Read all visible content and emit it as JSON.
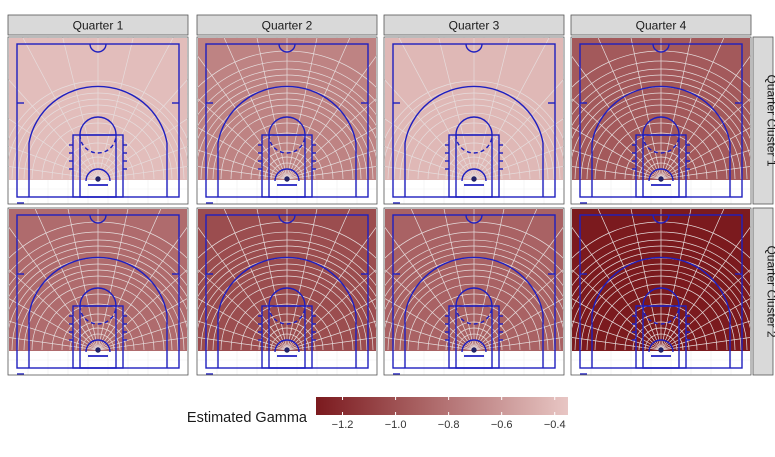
{
  "chart_data": {
    "type": "heatmap",
    "columns": [
      "Quarter 1",
      "Quarter 2",
      "Quarter 3",
      "Quarter 4"
    ],
    "rows": [
      "Quarter Cluster 1",
      "Quarter Cluster 2"
    ],
    "values": [
      [
        -0.4,
        -0.72,
        -0.43,
        -0.95
      ],
      [
        -0.85,
        -1.02,
        -0.9,
        -1.3
      ]
    ],
    "grid_dense": [
      [
        false,
        true,
        false,
        true
      ],
      [
        true,
        true,
        true,
        true
      ]
    ],
    "colorbar": {
      "title": "Estimated Gamma",
      "min": -1.3,
      "max": -0.35,
      "ticks": [
        -1.2,
        -1.0,
        -0.8,
        -0.6,
        -0.4
      ],
      "tick_labels": [
        "−1.2",
        "−1.0",
        "−0.8",
        "−0.6",
        "−0.4"
      ],
      "color_low": "#7b1a1e",
      "color_high": "#e8c6c4"
    },
    "court_line_color": "#1f1fbf",
    "grid_line_color": "#e6dcdc"
  }
}
